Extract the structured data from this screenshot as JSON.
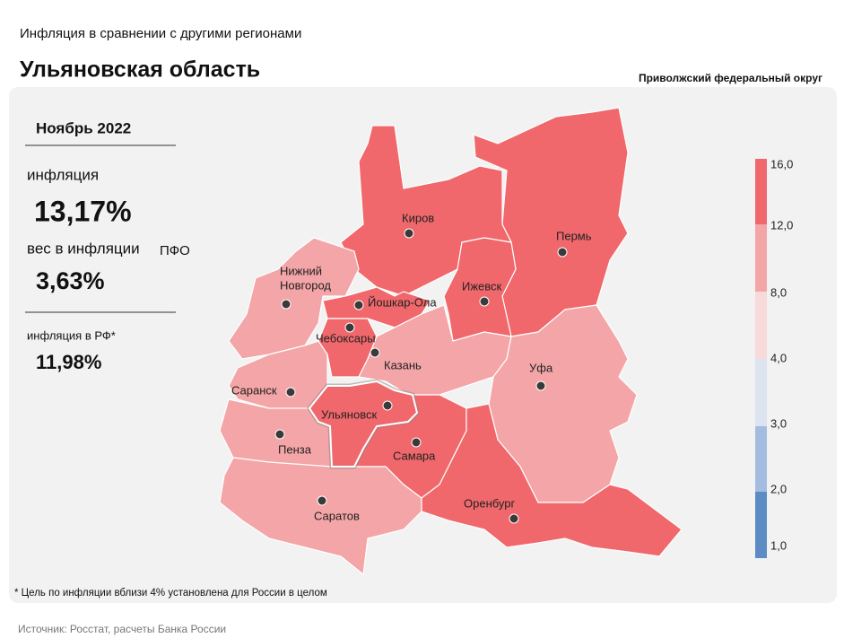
{
  "header": {
    "subtitle": "Инфляция в сравнении с другими регионами",
    "title": "Ульяновская область",
    "district": "Приволжский федеральный округ"
  },
  "panel": {
    "period": "Ноябрь 2022",
    "inflation_label": "инфляция",
    "inflation_value": "13,17%",
    "weight_label": "вес в инфляции",
    "weight_scope": "ПФО",
    "weight_value": "3,63%",
    "rf_label": "инфляция  в РФ*",
    "rf_value": "11,98%"
  },
  "map": {
    "regions": [
      {
        "label": [
          "Пермь"
        ],
        "color": "#f0686c"
      },
      {
        "label": [
          "Киров"
        ],
        "color": "#f0686c"
      },
      {
        "label": [
          "Ижевск"
        ],
        "color": "#f0686c"
      },
      {
        "label": [
          "Нижний",
          "Новгород"
        ],
        "color": "#f4a5a7"
      },
      {
        "label": [
          "Йошкар-Ола"
        ],
        "color": "#f0686c"
      },
      {
        "label": [
          "Чебоксары"
        ],
        "color": "#f0686c"
      },
      {
        "label": [
          "Казань"
        ],
        "color": "#f4a5a7"
      },
      {
        "label": [
          "Уфа"
        ],
        "color": "#f4a5a7"
      },
      {
        "label": [
          "Ульяновск"
        ],
        "color": "#f0686c"
      },
      {
        "label": [
          "Самара"
        ],
        "color": "#f0686c"
      },
      {
        "label": [
          "Оренбург"
        ],
        "color": "#f0686c"
      },
      {
        "label": [
          "Саранск"
        ],
        "color": "#f4a5a7"
      },
      {
        "label": [
          "Пенза"
        ],
        "color": "#f4a5a7"
      },
      {
        "label": [
          "Саратов"
        ],
        "color": "#f4a5a7"
      }
    ],
    "legend": {
      "colors": [
        "#f0686c",
        "#f4a5a7",
        "#f9dadb",
        "#dce4f0",
        "#a3bde0",
        "#5b8cc4"
      ],
      "ticks": [
        "16,0",
        "12,0",
        "8,0",
        "4,0",
        "3,0",
        "2,0",
        "1,0"
      ]
    }
  },
  "footnote": "* Цель по инфляции вблизи 4% установлена для России в целом",
  "source": "Источник: Росстат, расчеты Банка России"
}
